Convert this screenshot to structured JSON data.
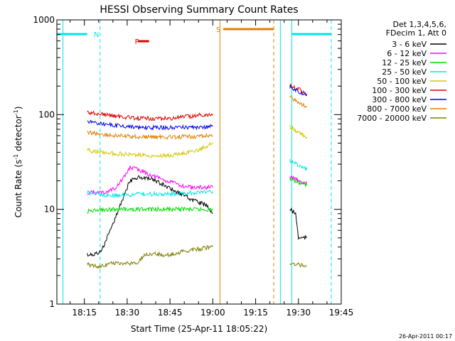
{
  "chart_data": {
    "type": "line",
    "title": "HESSI Observing Summary Count Rates",
    "xlabel": "Start Time (25-Apr-11 18:05:22)",
    "ylabel_main": "Count Rate (s",
    "ylabel_sup1": "-1",
    "ylabel_mid": " detector",
    "ylabel_sup2": "-1",
    "ylabel_end": ")",
    "yscale": "log",
    "xlim": [
      "18:05:22",
      "19:45:00"
    ],
    "ylim": [
      1,
      1000
    ],
    "x_ticks": [
      "18:15",
      "18:30",
      "18:45",
      "19:00",
      "19:15",
      "19:30",
      "19:45"
    ],
    "y_ticks": [
      "1",
      "10",
      "100",
      "1000"
    ],
    "legend_header": [
      "Det 1,3,4,5,6,",
      "FDecim 1, Att 0"
    ],
    "flags": [
      {
        "label": "N",
        "color": "#00e5e5"
      },
      {
        "label": "F",
        "color": "#e00000"
      },
      {
        "label": "S",
        "color": "#e08000"
      }
    ],
    "series": [
      {
        "name": "3 - 6 keV",
        "color": "#000000",
        "segments": [
          {
            "x": [
              "18:16",
              "18:20",
              "18:22",
              "18:25",
              "18:28",
              "18:31",
              "18:34",
              "18:40",
              "18:46",
              "18:52",
              "18:58",
              "19:00"
            ],
            "y": [
              3.3,
              3.4,
              4.2,
              7.0,
              12,
              20,
              22,
              20,
              16,
              13,
              11,
              9
            ]
          },
          {
            "x": [
              "19:27",
              "19:29",
              "19:30",
              "19:31",
              "19:33"
            ],
            "y": [
              10,
              9,
              5,
              5,
              5
            ]
          }
        ]
      },
      {
        "name": "6 - 12 keV",
        "color": "#ff00ff",
        "segments": [
          {
            "x": [
              "18:16",
              "18:22",
              "18:26",
              "18:29",
              "18:31",
              "18:34",
              "18:40",
              "18:46",
              "18:52",
              "19:00"
            ],
            "y": [
              15,
              15,
              17,
              22,
              28,
              26,
              22,
              19,
              17,
              17
            ]
          },
          {
            "x": [
              "19:27",
              "19:29",
              "19:31",
              "19:33"
            ],
            "y": [
              22,
              21,
              19,
              19
            ]
          }
        ]
      },
      {
        "name": "12 - 25 keV",
        "color": "#00dd00",
        "segments": [
          {
            "x": [
              "18:16",
              "18:25",
              "18:35",
              "18:45",
              "18:55",
              "19:00"
            ],
            "y": [
              9.5,
              10,
              10,
              10,
              10,
              10
            ]
          },
          {
            "x": [
              "19:27",
              "19:30",
              "19:33"
            ],
            "y": [
              21,
              19,
              18
            ]
          }
        ]
      },
      {
        "name": "25 - 50 keV",
        "color": "#00e5e5",
        "segments": [
          {
            "x": [
              "18:16",
              "18:25",
              "18:35",
              "18:45",
              "18:55",
              "19:00"
            ],
            "y": [
              15,
              14,
              14.5,
              14.5,
              15,
              15.5
            ]
          },
          {
            "x": [
              "19:27",
              "19:30",
              "19:33"
            ],
            "y": [
              33,
              29,
              26
            ]
          }
        ]
      },
      {
        "name": "50 - 100 keV",
        "color": "#d4c800",
        "segments": [
          {
            "x": [
              "18:16",
              "18:25",
              "18:35",
              "18:45",
              "18:55",
              "19:00"
            ],
            "y": [
              42,
              39,
              37,
              37,
              42,
              50
            ]
          },
          {
            "x": [
              "19:27",
              "19:30",
              "19:33"
            ],
            "y": [
              75,
              65,
              58
            ]
          }
        ]
      },
      {
        "name": "100 - 300 keV",
        "color": "#e00000",
        "segments": [
          {
            "x": [
              "18:16",
              "18:25",
              "18:35",
              "18:45",
              "18:55",
              "19:00"
            ],
            "y": [
              106,
              97,
              91,
              91,
              98,
              102
            ]
          },
          {
            "x": [
              "19:27",
              "19:30",
              "19:33"
            ],
            "y": [
              205,
              185,
              165
            ]
          }
        ]
      },
      {
        "name": "300 - 800 keV",
        "color": "#0000ee",
        "segments": [
          {
            "x": [
              "18:16",
              "18:25",
              "18:35",
              "18:45",
              "18:55",
              "19:00"
            ],
            "y": [
              84,
              77,
              73,
              73,
              74,
              75
            ]
          },
          {
            "x": [
              "19:27",
              "19:30",
              "19:33"
            ],
            "y": [
              195,
              175,
              160
            ]
          }
        ]
      },
      {
        "name": "800 - 7000 keV",
        "color": "#e08000",
        "segments": [
          {
            "x": [
              "18:16",
              "18:25",
              "18:35",
              "18:45",
              "18:55",
              "19:00"
            ],
            "y": [
              65,
              60,
              58,
              58,
              59,
              60
            ]
          },
          {
            "x": [
              "19:27",
              "19:30",
              "19:33"
            ],
            "y": [
              155,
              135,
              120
            ]
          }
        ]
      },
      {
        "name": "7000 - 20000 keV",
        "color": "#808000",
        "segments": [
          {
            "x": [
              "18:16",
              "18:20",
              "18:25",
              "18:33",
              "18:37",
              "18:45",
              "18:50",
              "18:55",
              "19:00"
            ],
            "y": [
              2.6,
              2.5,
              2.7,
              2.7,
              3.4,
              3.3,
              3.6,
              3.8,
              4.0
            ]
          },
          {
            "x": [
              "19:27",
              "19:30",
              "19:33"
            ],
            "y": [
              2.6,
              2.6,
              2.5
            ]
          }
        ]
      }
    ],
    "timestamp": "26-Apr-2011 00:17"
  }
}
